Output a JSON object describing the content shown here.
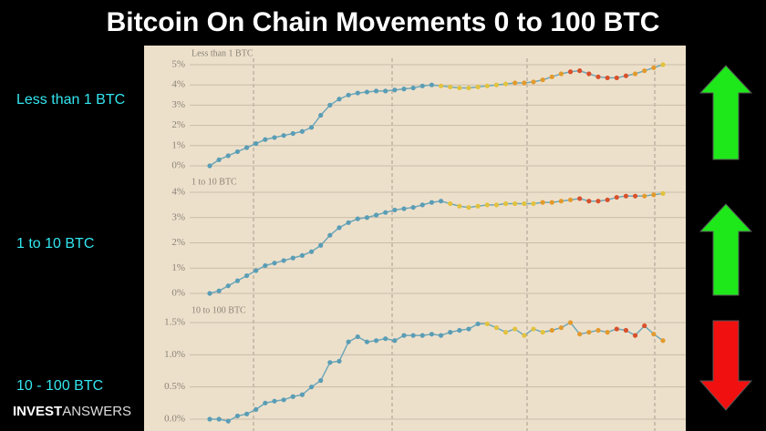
{
  "title": "Bitcoin On Chain Movements 0 to 100 BTC",
  "row_labels": [
    "Less than 1 BTC",
    "1 to 10 BTC",
    "10 - 100 BTC"
  ],
  "logo": {
    "bold": "INVEST",
    "light": "ANSWERS"
  },
  "chart_data": [
    {
      "type": "line",
      "title": "Less than 1 BTC",
      "ylim": [
        0,
        5
      ],
      "grid": true,
      "yticks": [
        {
          "value": 0,
          "label": "0%"
        },
        {
          "value": 1,
          "label": "1%"
        },
        {
          "value": 2,
          "label": "2%"
        },
        {
          "value": 3,
          "label": "3%"
        },
        {
          "value": 4,
          "label": "4%"
        },
        {
          "value": 5,
          "label": "5%"
        }
      ],
      "series": [
        {
          "color": "#6ea7b9",
          "values": [
            0.0,
            0.3,
            0.5,
            0.7,
            0.9,
            1.1,
            1.3,
            1.4,
            1.5,
            1.6,
            1.7,
            1.9,
            2.5,
            3.0,
            3.3,
            3.5,
            3.6,
            3.65,
            3.7,
            3.7,
            3.75,
            3.8,
            3.85,
            3.95,
            4.0,
            3.95,
            3.9,
            3.85,
            3.85,
            3.9,
            3.95,
            4.0,
            4.05,
            4.1,
            4.1,
            4.15,
            4.25,
            4.4,
            4.55,
            4.65,
            4.7,
            4.55,
            4.4,
            4.35,
            4.35,
            4.45,
            4.55,
            4.7,
            4.85,
            5.0
          ],
          "colors": [
            "#5a9db5",
            "#5a9db5",
            "#5a9db5",
            "#5a9db5",
            "#5a9db5",
            "#5a9db5",
            "#5a9db5",
            "#5a9db5",
            "#5a9db5",
            "#5a9db5",
            "#5a9db5",
            "#5a9db5",
            "#5a9db5",
            "#5a9db5",
            "#5a9db5",
            "#5a9db5",
            "#5a9db5",
            "#5a9db5",
            "#5a9db5",
            "#5a9db5",
            "#5a9db5",
            "#5a9db5",
            "#5a9db5",
            "#5a9db5",
            "#5a9db5",
            "#e2c23e",
            "#e2c23e",
            "#e2c23e",
            "#e2c23e",
            "#e2c23e",
            "#e2c23e",
            "#e2c23e",
            "#e2c23e",
            "#e39a2c",
            "#e39a2c",
            "#e39a2c",
            "#e39a2c",
            "#e39a2c",
            "#e39a2c",
            "#d9502a",
            "#d9502a",
            "#d9502a",
            "#d9502a",
            "#d9502a",
            "#d9502a",
            "#d9502a",
            "#e39a2c",
            "#e39a2c",
            "#e39a2c",
            "#e2c23e"
          ]
        }
      ]
    },
    {
      "type": "line",
      "title": "1 to 10 BTC",
      "ylim": [
        0,
        4
      ],
      "grid": true,
      "yticks": [
        {
          "value": 0,
          "label": "0%"
        },
        {
          "value": 1,
          "label": "1%"
        },
        {
          "value": 2,
          "label": "2%"
        },
        {
          "value": 3,
          "label": "3%"
        },
        {
          "value": 4,
          "label": "4%"
        }
      ],
      "series": [
        {
          "color": "#6ea7b9",
          "values": [
            0.0,
            0.1,
            0.3,
            0.5,
            0.7,
            0.9,
            1.1,
            1.2,
            1.3,
            1.4,
            1.5,
            1.65,
            1.9,
            2.3,
            2.6,
            2.8,
            2.95,
            3.0,
            3.1,
            3.2,
            3.3,
            3.35,
            3.4,
            3.5,
            3.6,
            3.65,
            3.55,
            3.45,
            3.4,
            3.45,
            3.5,
            3.5,
            3.55,
            3.55,
            3.55,
            3.55,
            3.6,
            3.6,
            3.65,
            3.7,
            3.75,
            3.65,
            3.65,
            3.7,
            3.8,
            3.85,
            3.85,
            3.85,
            3.9,
            3.95
          ],
          "colors": [
            "#5a9db5",
            "#5a9db5",
            "#5a9db5",
            "#5a9db5",
            "#5a9db5",
            "#5a9db5",
            "#5a9db5",
            "#5a9db5",
            "#5a9db5",
            "#5a9db5",
            "#5a9db5",
            "#5a9db5",
            "#5a9db5",
            "#5a9db5",
            "#5a9db5",
            "#5a9db5",
            "#5a9db5",
            "#5a9db5",
            "#5a9db5",
            "#5a9db5",
            "#5a9db5",
            "#5a9db5",
            "#5a9db5",
            "#5a9db5",
            "#5a9db5",
            "#5a9db5",
            "#e2c23e",
            "#e2c23e",
            "#e2c23e",
            "#e2c23e",
            "#e2c23e",
            "#e2c23e",
            "#e2c23e",
            "#e2c23e",
            "#e2c23e",
            "#e2c23e",
            "#e39a2c",
            "#e39a2c",
            "#e39a2c",
            "#e39a2c",
            "#d9502a",
            "#d9502a",
            "#d9502a",
            "#d9502a",
            "#d9502a",
            "#d9502a",
            "#d9502a",
            "#e39a2c",
            "#e39a2c",
            "#e2c23e"
          ]
        }
      ]
    },
    {
      "type": "line",
      "title": "10 to 100 BTC",
      "ylim": [
        0,
        1.5
      ],
      "grid": true,
      "yticks": [
        {
          "value": 0,
          "label": "0.0%"
        },
        {
          "value": 0.5,
          "label": "0.5%"
        },
        {
          "value": 1.0,
          "label": "1.0%"
        },
        {
          "value": 1.5,
          "label": "1.5%"
        }
      ],
      "series": [
        {
          "color": "#6ea7b9",
          "values": [
            0.0,
            0.0,
            -0.03,
            0.05,
            0.08,
            0.15,
            0.25,
            0.28,
            0.3,
            0.35,
            0.38,
            0.5,
            0.6,
            0.88,
            0.9,
            1.2,
            1.28,
            1.2,
            1.22,
            1.25,
            1.22,
            1.3,
            1.3,
            1.3,
            1.32,
            1.3,
            1.35,
            1.38,
            1.4,
            1.48,
            1.48,
            1.42,
            1.35,
            1.4,
            1.3,
            1.4,
            1.35,
            1.38,
            1.42,
            1.5,
            1.32,
            1.35,
            1.38,
            1.35,
            1.4,
            1.38,
            1.3,
            1.45,
            1.32,
            1.22
          ],
          "colors": [
            "#5a9db5",
            "#5a9db5",
            "#5a9db5",
            "#5a9db5",
            "#5a9db5",
            "#5a9db5",
            "#5a9db5",
            "#5a9db5",
            "#5a9db5",
            "#5a9db5",
            "#5a9db5",
            "#5a9db5",
            "#5a9db5",
            "#5a9db5",
            "#5a9db5",
            "#5a9db5",
            "#5a9db5",
            "#5a9db5",
            "#5a9db5",
            "#5a9db5",
            "#5a9db5",
            "#5a9db5",
            "#5a9db5",
            "#5a9db5",
            "#5a9db5",
            "#5a9db5",
            "#5a9db5",
            "#5a9db5",
            "#5a9db5",
            "#5a9db5",
            "#e2c23e",
            "#e2c23e",
            "#e2c23e",
            "#e2c23e",
            "#e2c23e",
            "#e2c23e",
            "#e2c23e",
            "#e39a2c",
            "#e39a2c",
            "#e39a2c",
            "#e39a2c",
            "#e39a2c",
            "#e39a2c",
            "#e39a2c",
            "#d9502a",
            "#d9502a",
            "#d9502a",
            "#d9502a",
            "#e39a2c",
            "#e39a2c"
          ]
        }
      ]
    }
  ]
}
